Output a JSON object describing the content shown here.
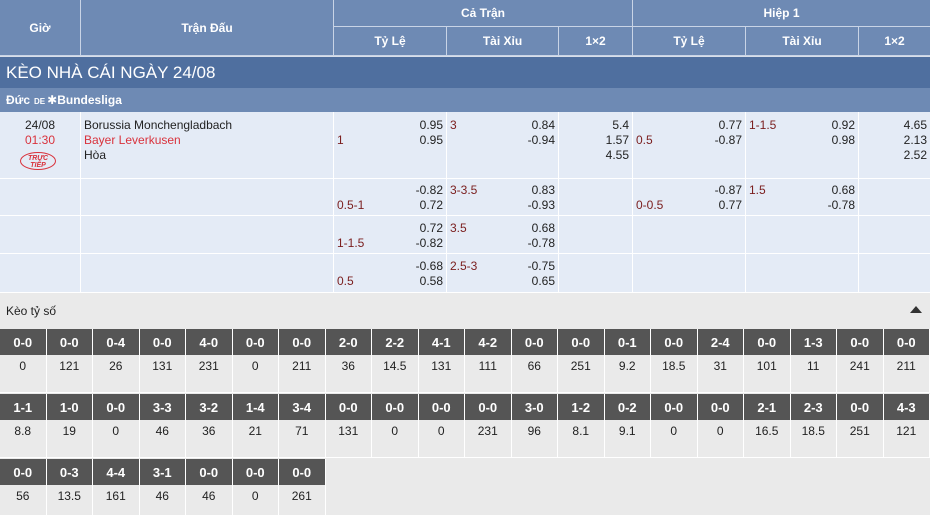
{
  "header": {
    "time": "Giờ",
    "match": "Trận Đấu",
    "full_match": "Cả Trận",
    "half": "Hiệp 1",
    "cols": [
      "Tỷ Lệ",
      "Tài Xỉu",
      "1×2",
      "Tỷ Lệ",
      "Tài Xỉu",
      "1×2"
    ]
  },
  "title": "KÈO NHÀ CÁI NGÀY 24/08",
  "league": {
    "country": "Đức",
    "flag_code": "DE",
    "name": "Bundesliga"
  },
  "match": {
    "date": "24/08",
    "time": "01:30",
    "live_badge": [
      "TRỰC",
      "TIẾP"
    ],
    "home": "Borussia Monchengladbach",
    "away": "Bayer Leverkusen",
    "draw": "Hòa"
  },
  "odds_rows": [
    {
      "ft_hdp": {
        "line": "1",
        "home": "0.95",
        "away": "0.95"
      },
      "ft_ou": {
        "line": "3",
        "over": "0.84",
        "under": "-0.94"
      },
      "ft_1x2": [
        "5.4",
        "1.57",
        "4.55"
      ],
      "h1_hdp": {
        "line": "0.5",
        "home": "0.77",
        "away": "-0.87"
      },
      "h1_ou": {
        "line": "1-1.5",
        "over": "0.92",
        "under": "0.98"
      },
      "h1_1x2": [
        "4.65",
        "2.13",
        "2.52"
      ]
    },
    {
      "ft_hdp": {
        "line": "0.5-1",
        "home": "-0.82",
        "away": "0.72"
      },
      "ft_ou": {
        "line": "3-3.5",
        "over": "0.83",
        "under": "-0.93"
      },
      "h1_hdp": {
        "line": "0-0.5",
        "home": "-0.87",
        "away": "0.77"
      },
      "h1_ou": {
        "line": "1.5",
        "over": "0.68",
        "under": "-0.78"
      }
    },
    {
      "ft_hdp": {
        "line": "1-1.5",
        "home": "0.72",
        "away": "-0.82"
      },
      "ft_ou": {
        "line": "3.5",
        "over": "0.68",
        "under": "-0.78"
      }
    },
    {
      "ft_hdp": {
        "line": "0.5",
        "home": "-0.68",
        "away": "0.58"
      },
      "ft_ou": {
        "line": "2.5-3",
        "over": "-0.75",
        "under": "0.65"
      }
    }
  ],
  "score_section": {
    "title": "Kèo tỷ số",
    "rows": [
      [
        [
          "0-0",
          "0"
        ],
        [
          "0-0",
          "121"
        ],
        [
          "0-4",
          "26"
        ],
        [
          "0-0",
          "131"
        ],
        [
          "4-0",
          "231"
        ],
        [
          "0-0",
          "0"
        ],
        [
          "0-0",
          "211"
        ],
        [
          "2-0",
          "36"
        ],
        [
          "2-2",
          "14.5"
        ],
        [
          "4-1",
          "131"
        ],
        [
          "4-2",
          "111"
        ],
        [
          "0-0",
          "66"
        ],
        [
          "0-0",
          "251"
        ],
        [
          "0-1",
          "9.2"
        ],
        [
          "0-0",
          "18.5"
        ],
        [
          "2-4",
          "31"
        ],
        [
          "0-0",
          "101"
        ],
        [
          "1-3",
          "11"
        ],
        [
          "0-0",
          "241"
        ],
        [
          "0-0",
          "211"
        ]
      ],
      [
        [
          "1-1",
          "8.8"
        ],
        [
          "1-0",
          "19"
        ],
        [
          "0-0",
          "0"
        ],
        [
          "3-3",
          "46"
        ],
        [
          "3-2",
          "36"
        ],
        [
          "1-4",
          "21"
        ],
        [
          "3-4",
          "71"
        ],
        [
          "0-0",
          "131"
        ],
        [
          "0-0",
          "0"
        ],
        [
          "0-0",
          "0"
        ],
        [
          "0-0",
          "231"
        ],
        [
          "3-0",
          "96"
        ],
        [
          "1-2",
          "8.1"
        ],
        [
          "0-2",
          "9.1"
        ],
        [
          "0-0",
          "0"
        ],
        [
          "0-0",
          "0"
        ],
        [
          "2-1",
          "16.5"
        ],
        [
          "2-3",
          "18.5"
        ],
        [
          "0-0",
          "251"
        ],
        [
          "4-3",
          "121"
        ]
      ],
      [
        [
          "0-0",
          "56"
        ],
        [
          "0-3",
          "13.5"
        ],
        [
          "4-4",
          "161"
        ],
        [
          "3-1",
          "46"
        ],
        [
          "0-0",
          "46"
        ],
        [
          "0-0",
          "0"
        ],
        [
          "0-0",
          "261"
        ]
      ]
    ]
  }
}
